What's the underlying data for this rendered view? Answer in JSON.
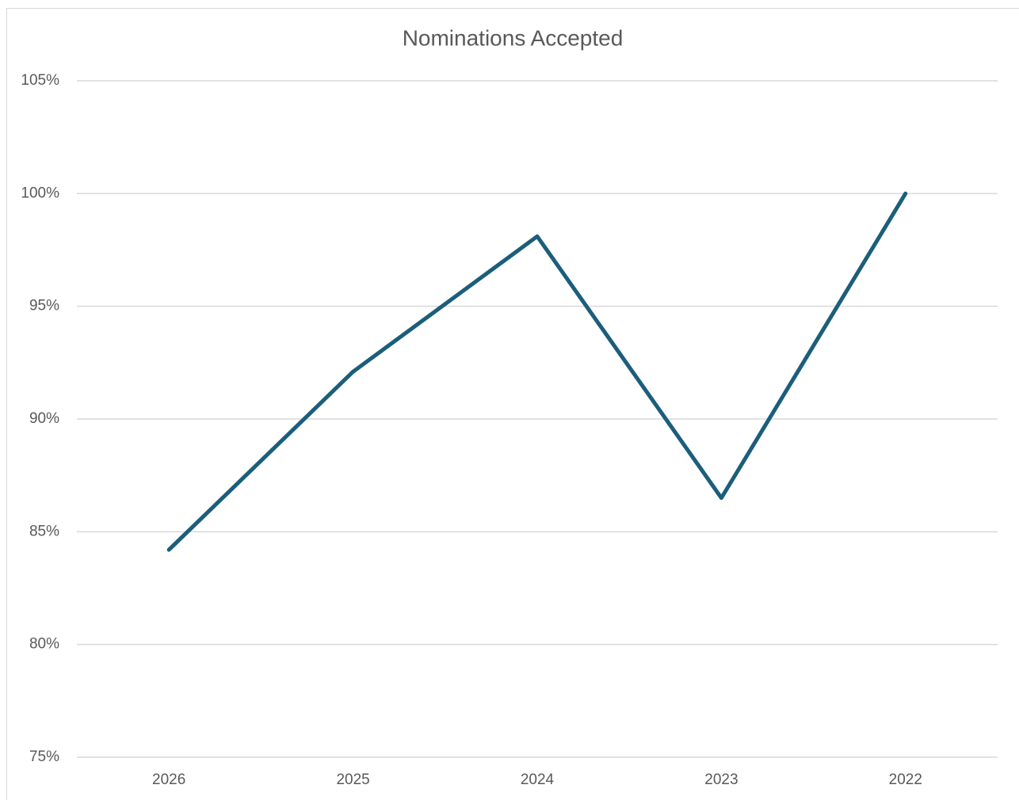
{
  "chart_data": {
    "type": "line",
    "title": "Nominations Accepted",
    "categories": [
      "2026",
      "2025",
      "2024",
      "2023",
      "2022"
    ],
    "series": [
      {
        "name": "Nominations Accepted",
        "color": "#1b5e7b",
        "values": [
          84.2,
          92.1,
          98.1,
          86.5,
          100
        ]
      }
    ],
    "ylim": [
      75,
      105
    ],
    "yticks": [
      {
        "value": 75,
        "label": "75%"
      },
      {
        "value": 80,
        "label": "80%"
      },
      {
        "value": 85,
        "label": "85%"
      },
      {
        "value": 90,
        "label": "90%"
      },
      {
        "value": 95,
        "label": "95%"
      },
      {
        "value": 100,
        "label": "100%"
      },
      {
        "value": 105,
        "label": "105%"
      }
    ],
    "grid": true
  }
}
